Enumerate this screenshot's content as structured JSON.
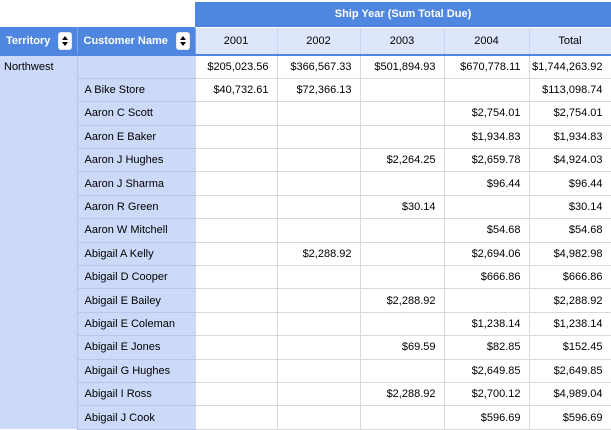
{
  "pivot": {
    "band_title": "Ship Year (Sum Total Due)",
    "columns": {
      "territory_label": "Territory",
      "customer_label": "Customer Name",
      "year_headers": [
        "2001",
        "2002",
        "2003",
        "2004",
        "Total"
      ]
    },
    "territory_group": "Northwest",
    "rows": [
      {
        "customer": "",
        "values": [
          "$205,023.56",
          "$366,567.33",
          "$501,894.93",
          "$670,778.11",
          "$1,744,263.92"
        ]
      },
      {
        "customer": "A Bike Store",
        "values": [
          "$40,732.61",
          "$72,366.13",
          "",
          "",
          "$113,098.74"
        ]
      },
      {
        "customer": "Aaron C Scott",
        "values": [
          "",
          "",
          "",
          "$2,754.01",
          "$2,754.01"
        ]
      },
      {
        "customer": "Aaron E Baker",
        "values": [
          "",
          "",
          "",
          "$1,934.83",
          "$1,934.83"
        ]
      },
      {
        "customer": "Aaron J Hughes",
        "values": [
          "",
          "",
          "$2,264.25",
          "$2,659.78",
          "$4,924.03"
        ]
      },
      {
        "customer": "Aaron J Sharma",
        "values": [
          "",
          "",
          "",
          "$96.44",
          "$96.44"
        ]
      },
      {
        "customer": "Aaron R Green",
        "values": [
          "",
          "",
          "$30.14",
          "",
          "$30.14"
        ]
      },
      {
        "customer": "Aaron W Mitchell",
        "values": [
          "",
          "",
          "",
          "$54.68",
          "$54.68"
        ]
      },
      {
        "customer": "Abigail A Kelly",
        "values": [
          "",
          "$2,288.92",
          "",
          "$2,694.06",
          "$4,982.98"
        ]
      },
      {
        "customer": "Abigail D Cooper",
        "values": [
          "",
          "",
          "",
          "$666.86",
          "$666.86"
        ]
      },
      {
        "customer": "Abigail E Bailey",
        "values": [
          "",
          "",
          "$2,288.92",
          "",
          "$2,288.92"
        ]
      },
      {
        "customer": "Abigail E Coleman",
        "values": [
          "",
          "",
          "",
          "$1,238.14",
          "$1,238.14"
        ]
      },
      {
        "customer": "Abigail E Jones",
        "values": [
          "",
          "",
          "$69.59",
          "$82.85",
          "$152.45"
        ]
      },
      {
        "customer": "Abigail G Hughes",
        "values": [
          "",
          "",
          "",
          "$2,649.85",
          "$2,649.85"
        ]
      },
      {
        "customer": "Abigail I Ross",
        "values": [
          "",
          "",
          "$2,288.92",
          "$2,700.12",
          "$4,989.04"
        ]
      },
      {
        "customer": "Abigail J Cook",
        "values": [
          "",
          "",
          "",
          "$596.69",
          "$596.69"
        ]
      }
    ],
    "icons": {
      "sort": "sort-asc-desc-triangles"
    },
    "colors": {
      "band_blue": "#4E86E0",
      "year_header_bg": "#DEE6FB",
      "group_cell_bg": "#CCD9F8",
      "grid_line": "#D9D9D9",
      "group_separator": "#B9C6EA",
      "header_text": "#FFFFFF",
      "body_text": "#000000"
    }
  }
}
